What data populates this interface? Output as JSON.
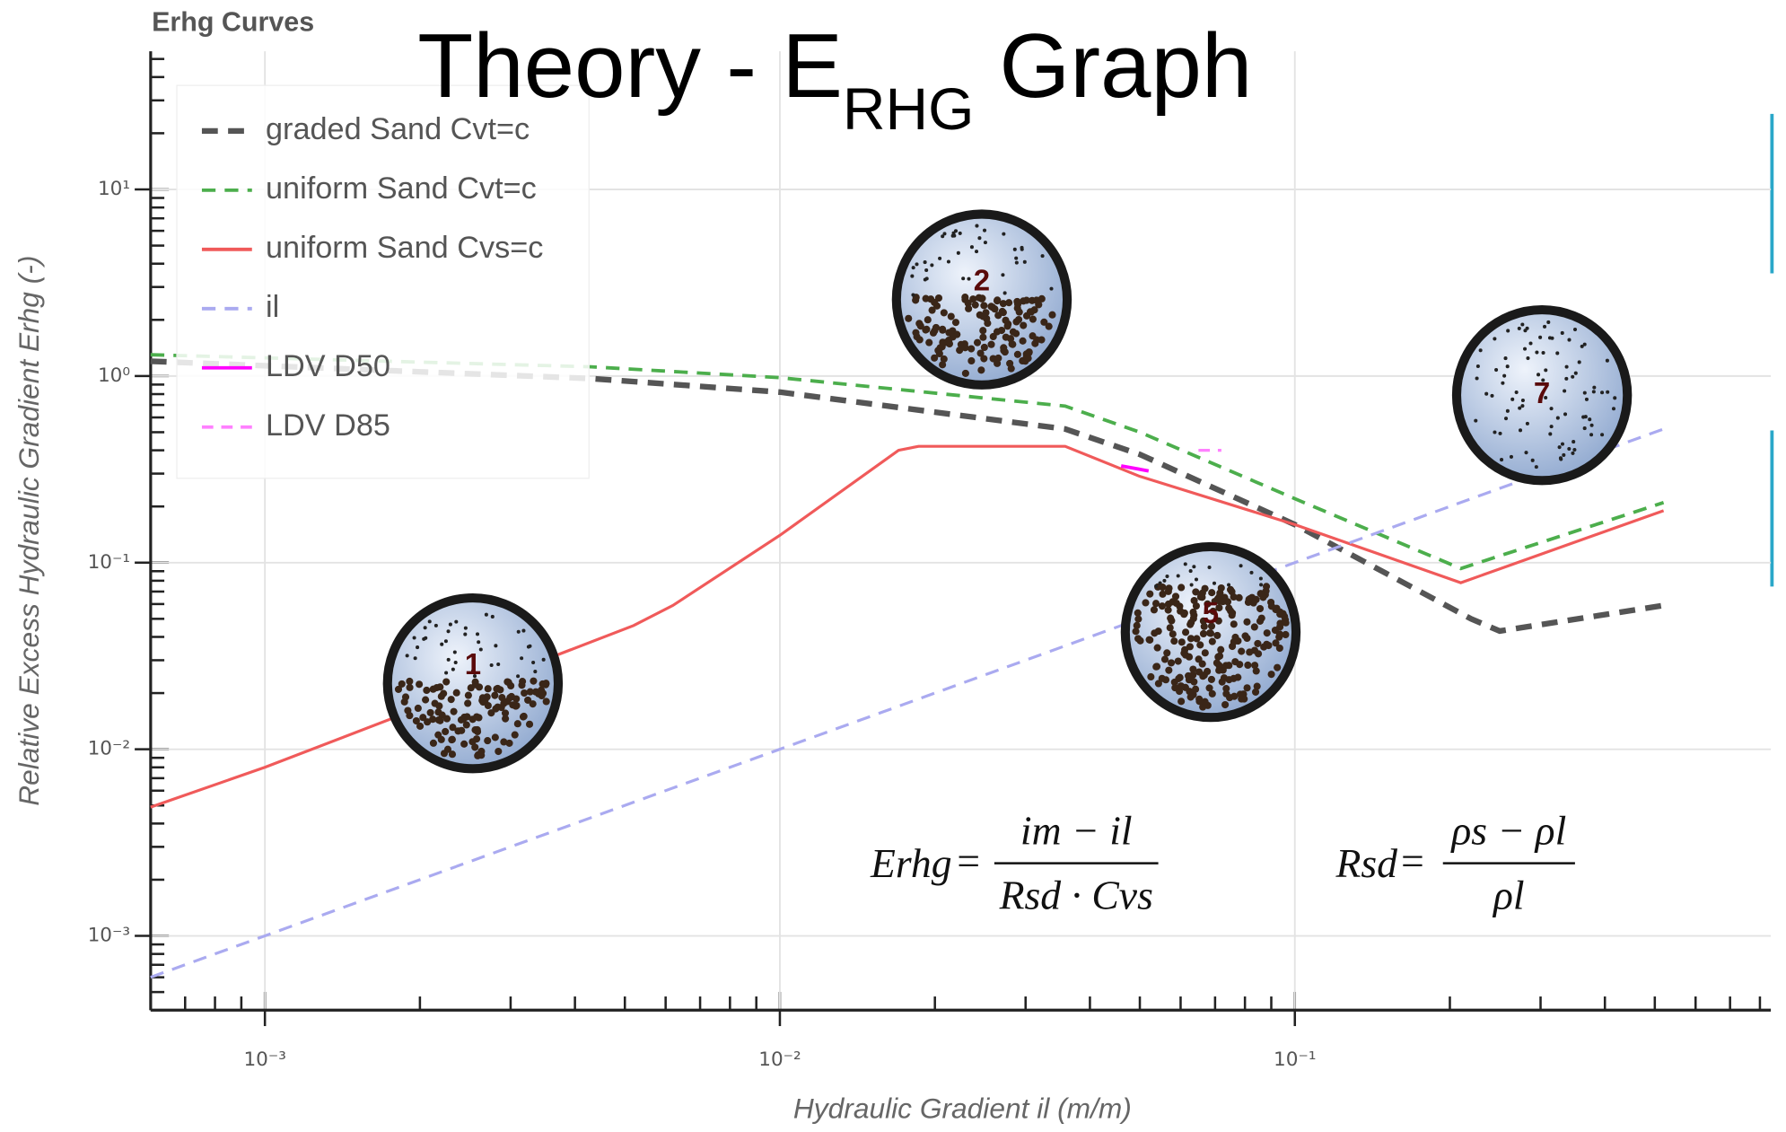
{
  "chart_data": {
    "type": "line",
    "panel_title": "Erhg Curves",
    "title": "Theory  - E",
    "title_sub": "RHG",
    "title_end": "Graph",
    "x_label": "Hydraulic Gradient il (m/m)",
    "y_label": "Relative Excess Hydraulic Gradient Erhg (-)",
    "xlog": true,
    "ylog": true,
    "grid": true,
    "legend": "upper left",
    "xlim": [
      0.0006,
      0.84
    ],
    "ylim": [
      0.0004,
      55
    ],
    "xticks": [
      {
        "value": 0.001,
        "label": "10⁻³"
      },
      {
        "value": 0.01,
        "label": "10⁻²"
      },
      {
        "value": 0.1,
        "label": "10⁻¹"
      }
    ],
    "yticks": [
      {
        "value": 0.001,
        "label": "10⁻³"
      },
      {
        "value": 0.01,
        "label": "10⁻²"
      },
      {
        "value": 0.1,
        "label": "10⁻¹"
      },
      {
        "value": 1,
        "label": "10⁰"
      },
      {
        "value": 10,
        "label": "10¹"
      }
    ],
    "series": [
      {
        "name": "graded Sand Cvt=c",
        "color": "#555555",
        "dash": "14 9",
        "width": 5,
        "x": [
          0.0006,
          0.0043,
          0.01,
          0.0358,
          0.05,
          0.1,
          0.22,
          0.25,
          0.52
        ],
        "values": [
          1.2,
          0.97,
          0.82,
          0.52,
          0.38,
          0.16,
          0.05,
          0.043,
          0.059
        ]
      },
      {
        "name": "uniform Sand Cvt=c",
        "color": "#4cae4c",
        "dash": "12 8",
        "width": 3,
        "x": [
          0.0006,
          0.0043,
          0.01,
          0.0358,
          0.05,
          0.1,
          0.21,
          0.52
        ],
        "values": [
          1.3,
          1.12,
          0.98,
          0.69,
          0.5,
          0.22,
          0.093,
          0.21
        ]
      },
      {
        "name": "uniform Sand Cvs=c",
        "color": "#f05a5a",
        "dash": "",
        "width": 2.5,
        "x": [
          0.0006,
          0.001,
          0.0052,
          0.0062,
          0.01,
          0.017,
          0.0186,
          0.0358,
          0.05,
          0.1,
          0.21,
          0.52
        ],
        "values": [
          0.0049,
          0.008,
          0.046,
          0.059,
          0.14,
          0.4,
          0.42,
          0.42,
          0.29,
          0.16,
          0.078,
          0.19
        ]
      },
      {
        "name": "il",
        "color": "#aaaaf0",
        "dash": "12 8",
        "width": 2.5,
        "x": [
          0.0006,
          0.52
        ],
        "values": [
          0.0006,
          0.52
        ]
      },
      {
        "name": "LDV D50",
        "color": "#ff00ff",
        "dash": "",
        "width": 3,
        "x": [
          0.046,
          0.052
        ],
        "values": [
          0.33,
          0.31
        ]
      },
      {
        "name": "LDV D85",
        "color": "#ff80ff",
        "dash": "10 7",
        "width": 2.5,
        "x": [
          0.065,
          0.072
        ],
        "values": [
          0.4,
          0.4
        ]
      }
    ],
    "bubbles": [
      "1",
      "2",
      "5",
      "7"
    ],
    "equations": [
      {
        "lhs": "Erhg",
        "numerator": "im − il",
        "denominator": "Rsd · Cvs"
      },
      {
        "lhs": "Rsd",
        "numerator": "ρs − ρl",
        "denominator": "ρl"
      }
    ]
  }
}
